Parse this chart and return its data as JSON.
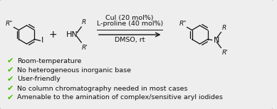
{
  "bg_color": "#eeeeee",
  "border_color": "#999999",
  "text_color": "#111111",
  "green_check_color": "#44bb00",
  "condition_line1": "CuI (20 mol%)",
  "condition_line2": "L-proline (40 mol%)",
  "condition_line3": "DMSO, rt",
  "bullet_points": [
    "Room-temperature",
    "No heterogeneous inorganic base",
    "User-friendly",
    "No column chromatography needed in most cases",
    "Amenable to the amination of complex/sensitive aryl iodides"
  ],
  "figwidth": 3.89,
  "figheight": 1.54,
  "dpi": 100
}
